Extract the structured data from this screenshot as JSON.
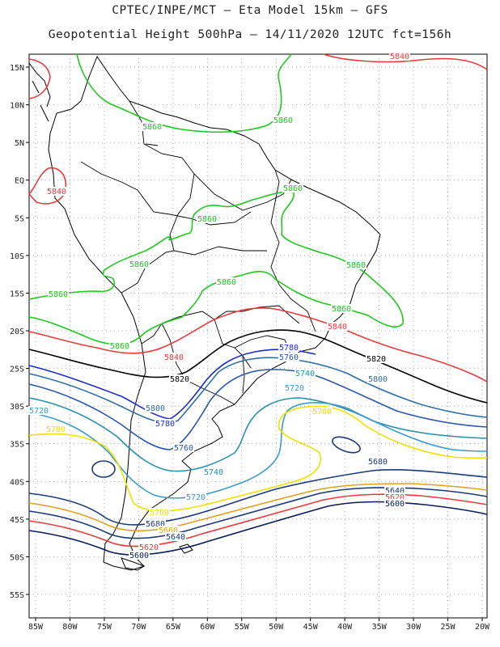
{
  "header": {
    "line1": "CPTEC/INPE/MCT –  Eta Model 15km – GFS",
    "line2": "Geopotential Height 500hPa – 14/11/2020 12UTC fct=156h"
  },
  "axes": {
    "lat_labels": [
      "15N",
      "10N",
      "5N",
      "EQ",
      "5S",
      "10S",
      "15S",
      "20S",
      "25S",
      "30S",
      "35S",
      "40S",
      "45S",
      "50S",
      "55S"
    ],
    "lon_labels": [
      "85W",
      "80W",
      "75W",
      "70W",
      "65W",
      "60W",
      "55W",
      "50W",
      "45W",
      "40W",
      "35W",
      "30W",
      "25W",
      "20W"
    ],
    "lat_range": [
      -58,
      16
    ],
    "lon_range": [
      -86,
      -20
    ]
  },
  "colors": {
    "c5860": "#1ec81e",
    "c5840": "#e83c3c",
    "c5820": "#000000",
    "c5800": "#2f6fa8",
    "c5780": "#1d2ec8",
    "c5760": "#2b56b0",
    "c5740": "#2b8fb0",
    "c5720": "#3a9ad0",
    "c5700": "#f0e000",
    "c5680": "#1a3a7a",
    "c5660": "#e0a020",
    "c5620": "#e83c3c",
    "c5600": "#0a1a5a",
    "coast": "#000000",
    "grid": "#8a8a8a"
  },
  "contour_labels": [
    {
      "text": "5840",
      "color": "#e83c3c"
    },
    {
      "text": "5860",
      "color": "#1ec81e"
    },
    {
      "text": "5860",
      "color": "#1ec81e"
    },
    {
      "text": "5840",
      "color": "#e83c3c"
    },
    {
      "text": "5860",
      "color": "#1ec81e"
    },
    {
      "text": "5860",
      "color": "#1ec81e"
    },
    {
      "text": "5860",
      "color": "#1ec81e"
    },
    {
      "text": "5860",
      "color": "#1ec81e"
    },
    {
      "text": "5860",
      "color": "#1ec81e"
    },
    {
      "text": "5860",
      "color": "#1ec81e"
    },
    {
      "text": "5860",
      "color": "#1ec81e"
    },
    {
      "text": "5860",
      "color": "#1ec81e"
    },
    {
      "text": "5840",
      "color": "#e83c3c"
    },
    {
      "text": "5840",
      "color": "#e83c3c"
    },
    {
      "text": "5820",
      "color": "#000000"
    },
    {
      "text": "5820",
      "color": "#000000"
    },
    {
      "text": "5780",
      "color": "#1d2ec8"
    },
    {
      "text": "5760",
      "color": "#2b56b0"
    },
    {
      "text": "5740",
      "color": "#2b8fb0"
    },
    {
      "text": "5800",
      "color": "#2f6fa8"
    },
    {
      "text": "5720",
      "color": "#3a9ad0"
    },
    {
      "text": "5800",
      "color": "#2f6fa8"
    },
    {
      "text": "5780",
      "color": "#1d2ec8"
    },
    {
      "text": "5720",
      "color": "#3a9ad0"
    },
    {
      "text": "5700",
      "color": "#f0e000"
    },
    {
      "text": "5700",
      "color": "#f0e000"
    },
    {
      "text": "5760",
      "color": "#2b56b0"
    },
    {
      "text": "5740",
      "color": "#2b8fb0"
    },
    {
      "text": "5720",
      "color": "#3a9ad0"
    },
    {
      "text": "5680",
      "color": "#1a3a7a"
    },
    {
      "text": "5640",
      "color": "#1a3a7a"
    },
    {
      "text": "5620",
      "color": "#e83c3c"
    },
    {
      "text": "5600",
      "color": "#0a1a5a"
    },
    {
      "text": "5700",
      "color": "#f0e000"
    },
    {
      "text": "5680",
      "color": "#1a3a7a"
    },
    {
      "text": "5660",
      "color": "#e0a020"
    },
    {
      "text": "5640",
      "color": "#1a3a7a"
    },
    {
      "text": "5620",
      "color": "#e83c3c"
    },
    {
      "text": "5600",
      "color": "#0a1a5a"
    }
  ]
}
